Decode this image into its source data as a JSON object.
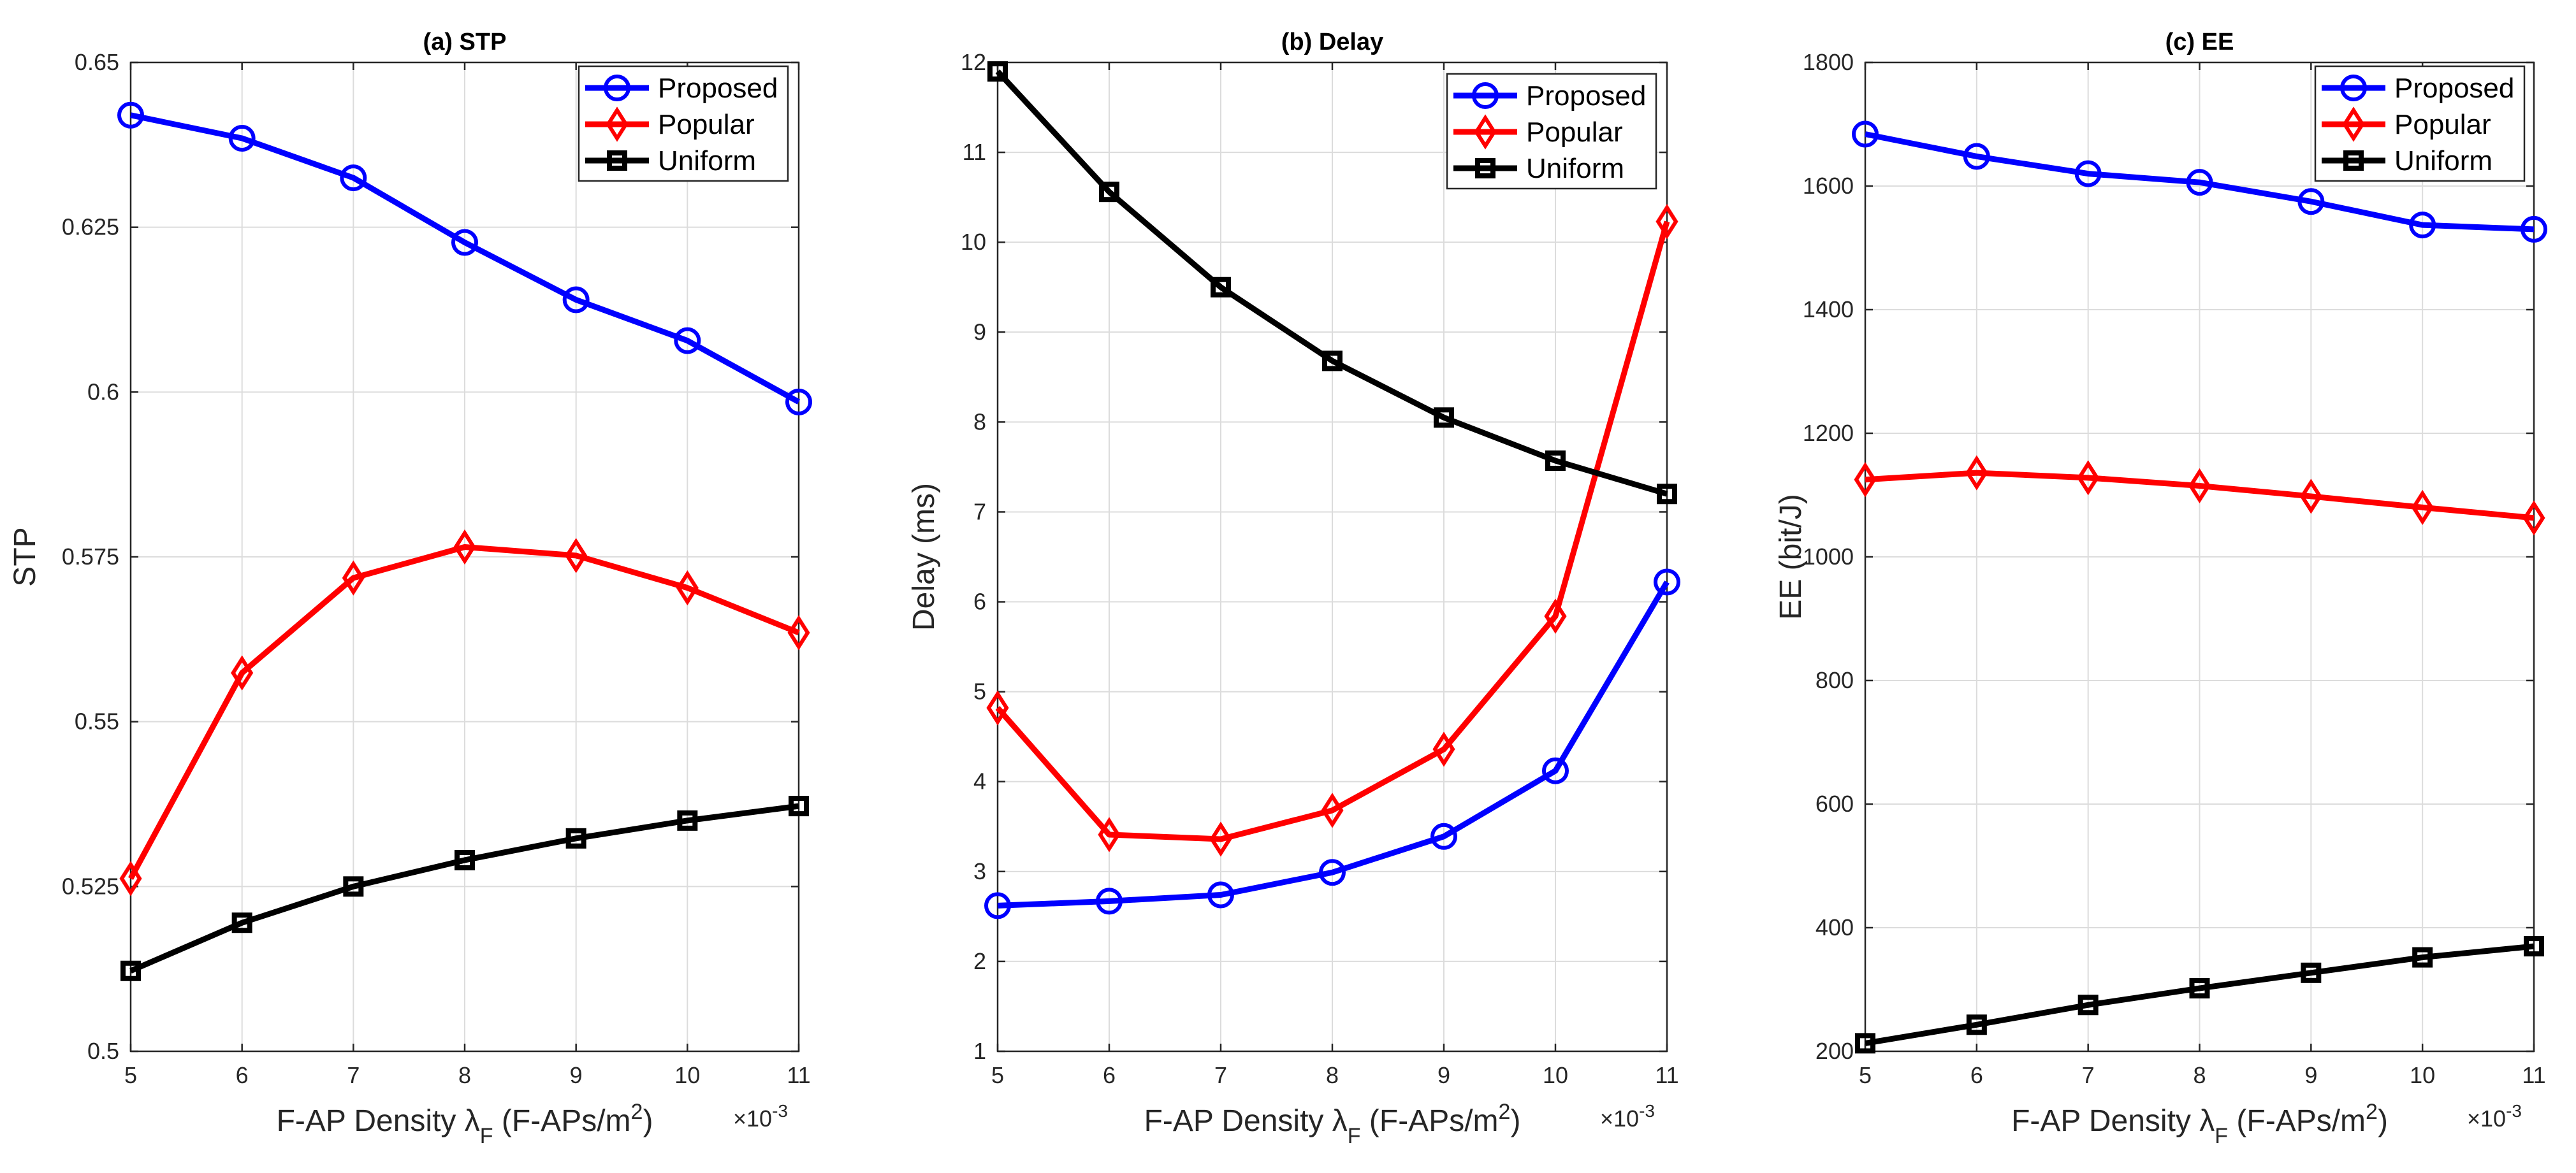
{
  "chart_data": [
    {
      "type": "line",
      "title": "(a) STP",
      "xlabel": "F-AP Density λF (F-APs/m2)",
      "xlabel_parts": {
        "pre": "F-AP Density ",
        "sym": "λ",
        "sub": "F",
        "mid": " (F-APs/m",
        "sup": "2",
        "post": ")"
      },
      "ylabel": "STP",
      "x_exponent": "×10",
      "x_exponent_power": "-3",
      "x": [
        5,
        6,
        7,
        8,
        9,
        10,
        11
      ],
      "xlim": [
        5,
        11
      ],
      "ylim": [
        0.5,
        0.65
      ],
      "xticks": [
        "5",
        "6",
        "7",
        "8",
        "9",
        "10",
        "11"
      ],
      "yticks": [
        {
          "v": 0.5,
          "label": "0.5"
        },
        {
          "v": 0.525,
          "label": "0.525"
        },
        {
          "v": 0.55,
          "label": "0.55"
        },
        {
          "v": 0.575,
          "label": "0.575"
        },
        {
          "v": 0.6,
          "label": "0.6"
        },
        {
          "v": 0.625,
          "label": "0.625"
        },
        {
          "v": 0.65,
          "label": "0.65"
        }
      ],
      "grid": true,
      "legend": "top-right",
      "series": [
        {
          "name": "Proposed",
          "color": "#0000ff",
          "marker": "circle",
          "values": [
            0.642,
            0.6385,
            0.6325,
            0.6227,
            0.614,
            0.6078,
            0.5985
          ]
        },
        {
          "name": "Popular",
          "color": "#ff0000",
          "marker": "diamond",
          "values": [
            0.5262,
            0.5574,
            0.5718,
            0.5765,
            0.5752,
            0.5703,
            0.5635
          ]
        },
        {
          "name": "Uniform",
          "color": "#000000",
          "marker": "square",
          "values": [
            0.5122,
            0.5195,
            0.525,
            0.529,
            0.5323,
            0.535,
            0.5372
          ]
        }
      ]
    },
    {
      "type": "line",
      "title": "(b) Delay",
      "xlabel": "F-AP Density λF (F-APs/m2)",
      "xlabel_parts": {
        "pre": "F-AP Density ",
        "sym": "λ",
        "sub": "F",
        "mid": " (F-APs/m",
        "sup": "2",
        "post": ")"
      },
      "ylabel": "Delay (ms)",
      "x_exponent": "×10",
      "x_exponent_power": "-3",
      "x": [
        5,
        6,
        7,
        8,
        9,
        10,
        11
      ],
      "xlim": [
        5,
        11
      ],
      "ylim": [
        1,
        12
      ],
      "xticks": [
        "5",
        "6",
        "7",
        "8",
        "9",
        "10",
        "11"
      ],
      "yticks": [
        {
          "v": 1,
          "label": "1"
        },
        {
          "v": 2,
          "label": "2"
        },
        {
          "v": 3,
          "label": "3"
        },
        {
          "v": 4,
          "label": "4"
        },
        {
          "v": 5,
          "label": "5"
        },
        {
          "v": 6,
          "label": "6"
        },
        {
          "v": 7,
          "label": "7"
        },
        {
          "v": 8,
          "label": "8"
        },
        {
          "v": 9,
          "label": "9"
        },
        {
          "v": 10,
          "label": "10"
        },
        {
          "v": 11,
          "label": "11"
        },
        {
          "v": 12,
          "label": "12"
        }
      ],
      "grid": true,
      "legend": "top-right",
      "series": [
        {
          "name": "Proposed",
          "color": "#0000ff",
          "marker": "circle",
          "values": [
            2.62,
            2.67,
            2.74,
            2.99,
            3.39,
            4.12,
            6.22
          ]
        },
        {
          "name": "Popular",
          "color": "#ff0000",
          "marker": "diamond",
          "values": [
            4.82,
            3.41,
            3.36,
            3.68,
            4.36,
            5.84,
            10.23
          ]
        },
        {
          "name": "Uniform",
          "color": "#000000",
          "marker": "square",
          "values": [
            11.9,
            10.56,
            9.5,
            8.68,
            8.05,
            7.57,
            7.2
          ]
        }
      ]
    },
    {
      "type": "line",
      "title": "(c) EE",
      "xlabel": "F-AP Density λF (F-APs/m2)",
      "xlabel_parts": {
        "pre": "F-AP Density ",
        "sym": "λ",
        "sub": "F",
        "mid": " (F-APs/m",
        "sup": "2",
        "post": ")"
      },
      "ylabel": "EE (bit/J)",
      "x_exponent": "×10",
      "x_exponent_power": "-3",
      "x": [
        5,
        6,
        7,
        8,
        9,
        10,
        11
      ],
      "xlim": [
        5,
        11
      ],
      "ylim": [
        200,
        1800
      ],
      "xticks": [
        "5",
        "6",
        "7",
        "8",
        "9",
        "10",
        "11"
      ],
      "yticks": [
        {
          "v": 200,
          "label": "200"
        },
        {
          "v": 400,
          "label": "400"
        },
        {
          "v": 600,
          "label": "600"
        },
        {
          "v": 800,
          "label": "800"
        },
        {
          "v": 1000,
          "label": "1000"
        },
        {
          "v": 1200,
          "label": "1200"
        },
        {
          "v": 1400,
          "label": "1400"
        },
        {
          "v": 1600,
          "label": "1600"
        },
        {
          "v": 1800,
          "label": "1800"
        }
      ],
      "grid": true,
      "legend": "top-right",
      "series": [
        {
          "name": "Proposed",
          "color": "#0000ff",
          "marker": "circle",
          "values": [
            1684,
            1648,
            1620,
            1606,
            1575,
            1537,
            1530
          ]
        },
        {
          "name": "Popular",
          "color": "#ff0000",
          "marker": "diamond",
          "values": [
            1125,
            1136,
            1128,
            1115,
            1098,
            1080,
            1063
          ]
        },
        {
          "name": "Uniform",
          "color": "#000000",
          "marker": "square",
          "values": [
            213,
            243,
            275,
            302,
            327,
            352,
            370
          ]
        }
      ]
    }
  ]
}
